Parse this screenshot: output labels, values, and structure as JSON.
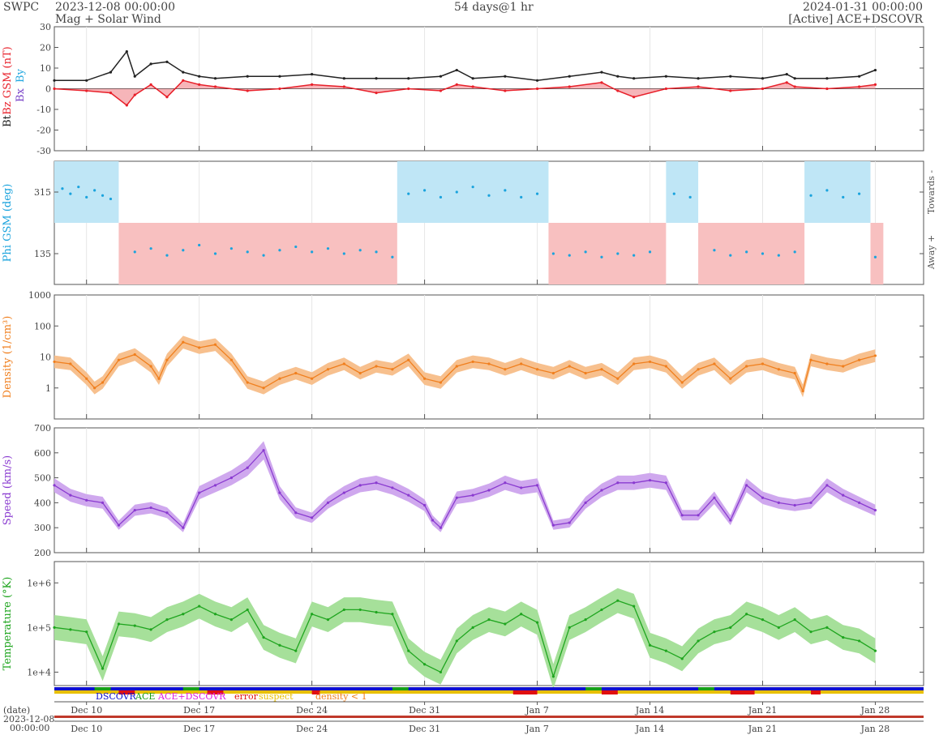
{
  "header": {
    "org": "SWPC",
    "start": "2023-12-08 00:00:00",
    "subtitle": "Mag + Solar Wind",
    "span": "54 days@1 hr",
    "end": "2024-01-31 00:00:00",
    "source": "[Active] ACE+DSCOVR"
  },
  "colors": {
    "bt": "#222222",
    "bz": "#e8202a",
    "bz_fill": "#f4a3a8",
    "bx": "#7a44c8",
    "by": "#26a9e0",
    "phi": "#1aa3dd",
    "towards_fill": "#bfe6f6",
    "away_fill": "#f8c0c0",
    "density": "#f07f1e",
    "density_fill": "#f7c08e",
    "speed": "#8a3bd0",
    "speed_fill": "#cfa8ee",
    "temperature": "#1fa51f",
    "temperature_fill": "#a6e09a",
    "dscovr": "#1010d0",
    "ace": "#18a018",
    "ace_dscovr": "#e020e0",
    "error": "#e01010",
    "suspect": "#e8c000",
    "density_lt1": "#f07f1e"
  },
  "x_axis": {
    "tick_labels": [
      "Dec 10",
      "Dec 17",
      "Dec 24",
      "Dec 31",
      "Jan 7",
      "Jan 14",
      "Jan 21",
      "Jan 28"
    ],
    "tick_days": [
      2,
      9,
      16,
      23,
      30,
      37,
      44,
      51
    ],
    "date_label": "(date)",
    "start_date": "2023-12-08",
    "start_time": "00:00:00"
  },
  "legend": {
    "dscovr": "DSCOVR",
    "ace": "ACE",
    "ace_dscovr": "ACE+DSCOVR",
    "error": "error",
    "suspect": "suspect",
    "density_lt1": "density < 1"
  },
  "chart_data": [
    {
      "type": "line",
      "title": "",
      "ylabel_bt": "Bt",
      "ylabel_bz": "Bz GSM (nT)",
      "ylabel_bx": "Bx",
      "ylabel_by": "By",
      "ylim": [
        -30,
        30
      ],
      "ytick_labels": [
        "30",
        "20",
        "10",
        "0",
        "-10",
        "-20",
        "-30"
      ],
      "x": [
        0,
        2,
        3.5,
        4.5,
        5,
        6,
        7,
        8,
        9,
        10,
        12,
        14,
        16,
        18,
        20,
        22,
        24,
        25,
        26,
        28,
        30,
        32,
        34,
        35,
        36,
        38,
        40,
        42,
        44,
        45.5,
        46,
        48,
        50,
        51
      ],
      "series": [
        {
          "name": "Bt",
          "values": [
            4,
            4,
            8,
            18,
            6,
            12,
            13,
            8,
            6,
            5,
            6,
            6,
            7,
            5,
            5,
            5,
            6,
            9,
            5,
            6,
            4,
            6,
            8,
            6,
            5,
            6,
            5,
            6,
            5,
            7,
            5,
            5,
            6,
            9
          ]
        },
        {
          "name": "Bz",
          "values": [
            0,
            -1,
            -2,
            -8,
            -3,
            2,
            -4,
            4,
            2,
            1,
            -1,
            0,
            2,
            1,
            -2,
            0,
            -1,
            2,
            1,
            -1,
            0,
            1,
            3,
            -1,
            -4,
            0,
            1,
            -1,
            0,
            3,
            1,
            0,
            1,
            2
          ]
        }
      ]
    },
    {
      "type": "scatter",
      "title": "",
      "ylabel": "Phi GSM (deg)",
      "ytick_labels": [
        "315",
        "135"
      ],
      "right_labels": [
        "Towards -",
        "Away +"
      ],
      "towards_intervals": [
        [
          0,
          4
        ],
        [
          21.3,
          30.7
        ],
        [
          38,
          40
        ],
        [
          46.6,
          50.7
        ]
      ],
      "away_intervals": [
        [
          4,
          21.3
        ],
        [
          30.7,
          38
        ],
        [
          40,
          46.6
        ],
        [
          50.7,
          51.5
        ]
      ],
      "series": [
        {
          "name": "Phi",
          "x": [
            0.5,
            1,
            1.5,
            2,
            2.5,
            3,
            3.5,
            5,
            6,
            7,
            8,
            9,
            10,
            11,
            12,
            13,
            14,
            15,
            16,
            17,
            18,
            19,
            20,
            21,
            22,
            23,
            24,
            25,
            26,
            27,
            28,
            29,
            30,
            31,
            32,
            33,
            34,
            35,
            36,
            37,
            38.5,
            39.5,
            41,
            42,
            43,
            44,
            45,
            46,
            47,
            48,
            49,
            50,
            51
          ],
          "values": [
            325,
            310,
            330,
            300,
            320,
            305,
            295,
            140,
            150,
            130,
            145,
            160,
            135,
            150,
            140,
            130,
            145,
            155,
            140,
            150,
            135,
            145,
            140,
            125,
            310,
            320,
            300,
            315,
            330,
            305,
            320,
            300,
            310,
            135,
            130,
            140,
            125,
            135,
            130,
            140,
            310,
            300,
            145,
            130,
            140,
            135,
            130,
            140,
            305,
            320,
            300,
            310,
            125
          ]
        }
      ]
    },
    {
      "type": "area",
      "title": "",
      "ylabel": "Density (1/cm³)",
      "yscale": "log",
      "ylim": [
        0.1,
        1000
      ],
      "ytick_labels": [
        "1000",
        "100",
        "10",
        "1"
      ],
      "x": [
        0,
        1,
        2,
        2.5,
        3,
        4,
        5,
        6,
        6.5,
        7,
        8,
        9,
        10,
        11,
        12,
        13,
        14,
        15,
        16,
        17,
        18,
        19,
        20,
        21,
        22,
        23,
        24,
        25,
        26,
        27,
        28,
        29,
        30,
        31,
        32,
        33,
        34,
        35,
        36,
        37,
        38,
        39,
        40,
        41,
        42,
        43,
        44,
        45,
        46,
        46.5,
        47,
        48,
        49,
        50,
        51
      ],
      "series": [
        {
          "name": "Density",
          "values": [
            7,
            6,
            2,
            1,
            1.5,
            8,
            12,
            5,
            2,
            8,
            30,
            20,
            25,
            8,
            1.5,
            1,
            2,
            3,
            2,
            4,
            6,
            3,
            5,
            4,
            8,
            2,
            1.5,
            5,
            7,
            6,
            4,
            6,
            4,
            3,
            5,
            3,
            4,
            2,
            6,
            7,
            5,
            1.5,
            4,
            6,
            2,
            5,
            6,
            4,
            3,
            0.8,
            8,
            6,
            5,
            8,
            11
          ]
        }
      ]
    },
    {
      "type": "area",
      "title": "",
      "ylabel": "Speed (km/s)",
      "ylim": [
        200,
        700
      ],
      "ytick_labels": [
        "700",
        "600",
        "500",
        "400",
        "300",
        "200"
      ],
      "x": [
        0,
        1,
        2,
        3,
        4,
        5,
        6,
        7,
        8,
        9,
        10,
        11,
        12,
        13,
        14,
        15,
        16,
        17,
        18,
        19,
        20,
        21,
        22,
        23,
        23.5,
        24,
        25,
        26,
        27,
        28,
        29,
        30,
        31,
        32,
        33,
        34,
        35,
        36,
        37,
        38,
        39,
        40,
        41,
        42,
        43,
        44,
        45,
        46,
        47,
        48,
        49,
        50,
        51
      ],
      "series": [
        {
          "name": "Speed",
          "values": [
            470,
            430,
            410,
            400,
            310,
            370,
            380,
            360,
            300,
            440,
            470,
            500,
            540,
            610,
            440,
            360,
            340,
            400,
            440,
            470,
            480,
            460,
            430,
            390,
            330,
            300,
            420,
            430,
            450,
            480,
            460,
            470,
            310,
            320,
            400,
            450,
            480,
            480,
            490,
            480,
            350,
            350,
            420,
            330,
            470,
            420,
            400,
            390,
            400,
            470,
            430,
            400,
            370
          ]
        }
      ]
    },
    {
      "type": "area",
      "title": "",
      "ylabel": "Temperature (°K)",
      "yscale": "log",
      "ylim": [
        5000,
        3000000
      ],
      "ytick_labels": [
        "1e+6",
        "1e+5",
        "1e+4"
      ],
      "x": [
        0,
        1,
        2,
        3,
        4,
        5,
        6,
        7,
        8,
        9,
        10,
        11,
        12,
        13,
        14,
        15,
        16,
        17,
        18,
        19,
        20,
        21,
        22,
        23,
        24,
        25,
        26,
        27,
        28,
        29,
        30,
        31,
        32,
        33,
        34,
        35,
        36,
        37,
        38,
        39,
        40,
        41,
        42,
        43,
        44,
        45,
        46,
        47,
        48,
        49,
        50,
        51
      ],
      "series": [
        {
          "name": "Temperature",
          "values": [
            100000,
            90000,
            80000,
            12000,
            120000,
            110000,
            90000,
            150000,
            200000,
            300000,
            200000,
            150000,
            250000,
            60000,
            40000,
            30000,
            200000,
            150000,
            250000,
            250000,
            220000,
            200000,
            30000,
            15000,
            10000,
            50000,
            100000,
            150000,
            120000,
            200000,
            130000,
            8000,
            100000,
            150000,
            250000,
            400000,
            300000,
            40000,
            30000,
            20000,
            50000,
            80000,
            100000,
            200000,
            150000,
            100000,
            150000,
            80000,
            100000,
            60000,
            50000,
            30000
          ]
        }
      ]
    }
  ]
}
